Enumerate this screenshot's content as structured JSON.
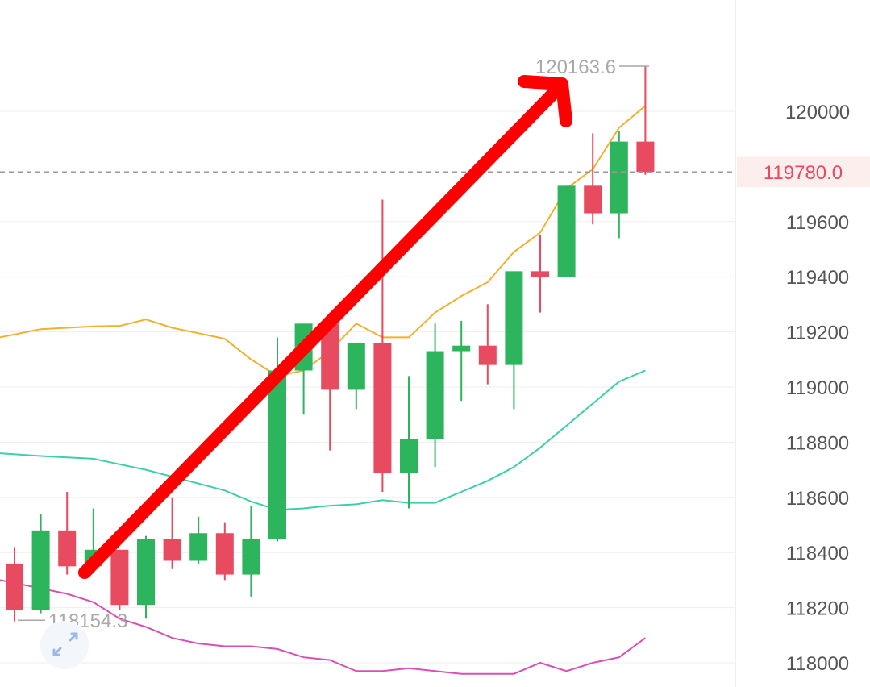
{
  "chart_data": {
    "type": "candlestick",
    "y_axis_ticks": [
      118000,
      118200,
      118400,
      118600,
      118800,
      119000,
      119200,
      119400,
      119600,
      120000
    ],
    "current_price": 119780.0,
    "current_price_label": "119780.0",
    "high_label": "120163.6",
    "low_label": "118154.3",
    "high_value": 120163.6,
    "low_value": 118154.3,
    "ylim": [
      117980,
      120330
    ],
    "grid": true,
    "colors": {
      "up": "#2db55d",
      "down": "#e84a5f",
      "ma_short": "#f0b12c",
      "ma_mid": "#3ccfa8",
      "ma_long": "#d94fb5",
      "arrow": "#ff0000",
      "price_tag_bg": "#fdeeee",
      "grid": "#eeeeee"
    },
    "candles": [
      {
        "o": 118360,
        "h": 118420,
        "l": 118150,
        "c": 118190
      },
      {
        "o": 118190,
        "h": 118540,
        "l": 118180,
        "c": 118480
      },
      {
        "o": 118480,
        "h": 118620,
        "l": 118320,
        "c": 118350
      },
      {
        "o": 118350,
        "h": 118560,
        "l": 118330,
        "c": 118410
      },
      {
        "o": 118410,
        "h": 118410,
        "l": 118190,
        "c": 118210
      },
      {
        "o": 118210,
        "h": 118460,
        "l": 118160,
        "c": 118450
      },
      {
        "o": 118450,
        "h": 118600,
        "l": 118340,
        "c": 118370
      },
      {
        "o": 118370,
        "h": 118530,
        "l": 118360,
        "c": 118470
      },
      {
        "o": 118470,
        "h": 118510,
        "l": 118300,
        "c": 118320
      },
      {
        "o": 118320,
        "h": 118570,
        "l": 118240,
        "c": 118450
      },
      {
        "o": 118450,
        "h": 119180,
        "l": 118440,
        "c": 119060
      },
      {
        "o": 119060,
        "h": 119230,
        "l": 118900,
        "c": 119230
      },
      {
        "o": 119230,
        "h": 119270,
        "l": 118770,
        "c": 118990
      },
      {
        "o": 118990,
        "h": 119160,
        "l": 118920,
        "c": 119160
      },
      {
        "o": 119160,
        "h": 119680,
        "l": 118620,
        "c": 118690
      },
      {
        "o": 118690,
        "h": 119040,
        "l": 118560,
        "c": 118810
      },
      {
        "o": 118810,
        "h": 119230,
        "l": 118710,
        "c": 119130
      },
      {
        "o": 119130,
        "h": 119240,
        "l": 118950,
        "c": 119150
      },
      {
        "o": 119150,
        "h": 119300,
        "l": 119010,
        "c": 119080
      },
      {
        "o": 119080,
        "h": 119420,
        "l": 118920,
        "c": 119420
      },
      {
        "o": 119420,
        "h": 119550,
        "l": 119270,
        "c": 119400
      },
      {
        "o": 119400,
        "h": 119730,
        "l": 119400,
        "c": 119730
      },
      {
        "o": 119730,
        "h": 119920,
        "l": 119590,
        "c": 119630
      },
      {
        "o": 119630,
        "h": 119930,
        "l": 119540,
        "c": 119890
      },
      {
        "o": 119890,
        "h": 120163.6,
        "l": 119770,
        "c": 119780
      }
    ],
    "ma_short": [
      119180,
      119210,
      119215,
      119220,
      119222,
      119245,
      119215,
      119195,
      119175,
      119100,
      119040,
      119060,
      119130,
      119230,
      119180,
      119180,
      119270,
      119330,
      119380,
      119490,
      119560,
      119720,
      119790,
      119940,
      120020
    ],
    "ma_mid": [
      118760,
      118750,
      118745,
      118740,
      118720,
      118700,
      118675,
      118650,
      118625,
      118585,
      118555,
      118560,
      118570,
      118575,
      118590,
      118580,
      118580,
      118620,
      118660,
      118710,
      118780,
      118860,
      118940,
      119020,
      119060
    ],
    "ma_long": [
      118300,
      118270,
      118250,
      118220,
      118160,
      118130,
      118090,
      118070,
      118060,
      118060,
      118050,
      118020,
      118010,
      117970,
      117970,
      117980,
      117970,
      117960,
      117960,
      117960,
      118000,
      117970,
      118000,
      118020,
      118090
    ]
  }
}
